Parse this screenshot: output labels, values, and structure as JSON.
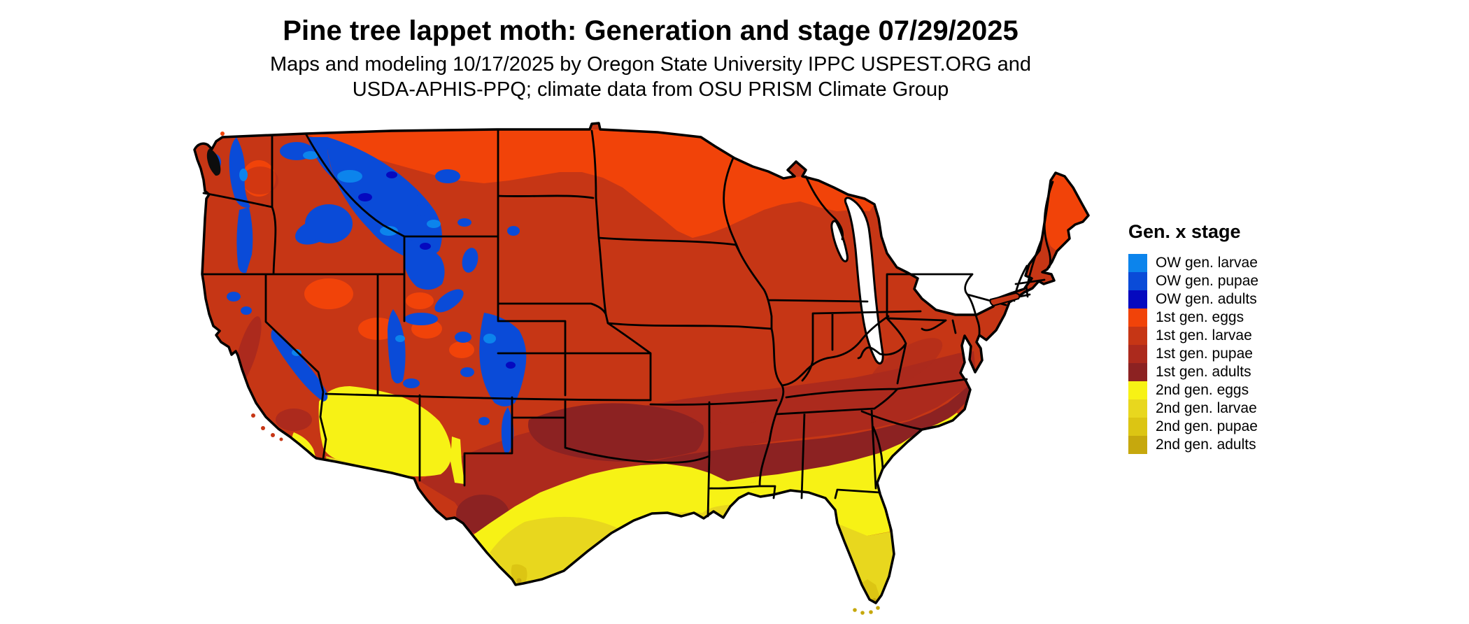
{
  "title": "Pine tree lappet moth: Generation and stage 07/29/2025",
  "subtitle": {
    "line1": "Maps and modeling 10/17/2025 by Oregon State University IPPC USPEST.ORG and",
    "line2": "USDA-APHIS-PPQ; climate data from OSU PRISM Climate Group"
  },
  "legend": {
    "title": "Gen. x stage",
    "items": [
      {
        "label": "OW gen. larvae",
        "color": "#0C84EC"
      },
      {
        "label": "OW gen. pupae",
        "color": "#0A4BD8"
      },
      {
        "label": "OW gen. adults",
        "color": "#0509BF"
      },
      {
        "label": "1st gen. eggs",
        "color": "#F14309"
      },
      {
        "label": "1st gen. larvae",
        "color": "#C63615"
      },
      {
        "label": "1st gen. pupae",
        "color": "#AC2A1D"
      },
      {
        "label": "1st gen. adults",
        "color": "#8C2222"
      },
      {
        "label": "2nd gen. eggs",
        "color": "#F7F215"
      },
      {
        "label": "2nd gen. larvae",
        "color": "#E8D71E"
      },
      {
        "label": "2nd gen. pupae",
        "color": "#DCC513"
      },
      {
        "label": "2nd gen. adults",
        "color": "#C6A80D"
      }
    ]
  },
  "map": {
    "background": "#FFFFFF",
    "border_color": "#000000",
    "water_color": "#FFFFFF"
  }
}
